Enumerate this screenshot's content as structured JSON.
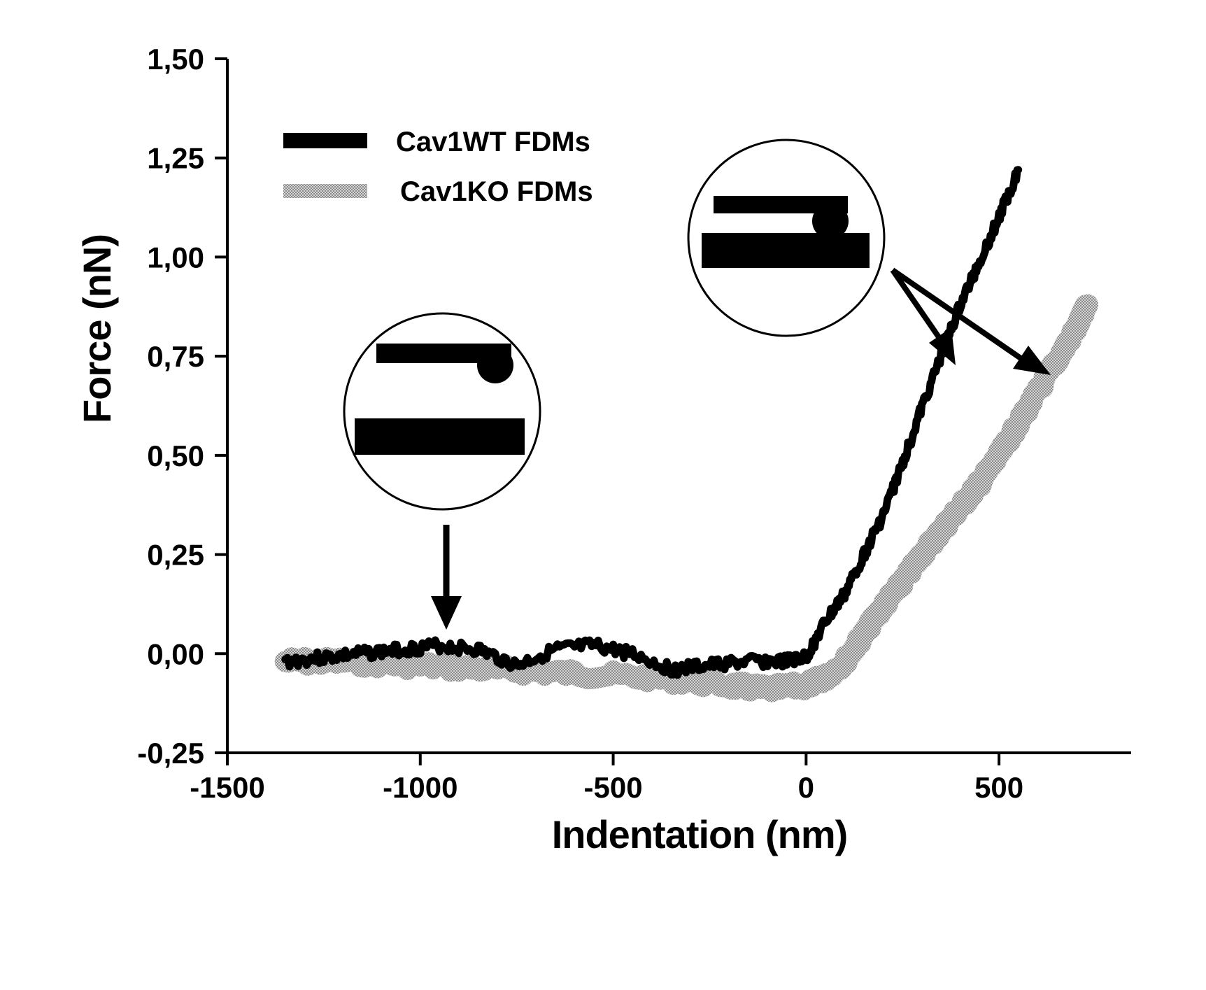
{
  "chart_data": {
    "type": "line",
    "title": "",
    "xlabel": "Indentation (nm)",
    "ylabel": "Force (nN)",
    "xlim": [
      -1500,
      750
    ],
    "ylim": [
      -0.25,
      1.5
    ],
    "xticks": [
      -1500,
      -1000,
      -500,
      0,
      500
    ],
    "xtick_labels": [
      "-1500",
      "-1000",
      "-500",
      "0",
      "500"
    ],
    "yticks": [
      -0.25,
      0,
      0.25,
      0.5,
      0.75,
      1.0,
      1.25,
      1.5
    ],
    "ytick_labels": [
      "-0,25",
      "0,00",
      "0,25",
      "0,50",
      "0,75",
      "1,00",
      "1,25",
      "1,50"
    ],
    "grid": false,
    "legend_position": "top-left",
    "series": [
      {
        "name": "Cav1WT FDMs",
        "color": "#000000",
        "style": "solid-thick",
        "x": [
          -1350,
          -1250,
          -1150,
          -1050,
          -950,
          -850,
          -750,
          -650,
          -550,
          -450,
          -350,
          -250,
          -150,
          -50,
          0,
          50,
          100,
          150,
          200,
          250,
          300,
          350,
          400,
          450,
          500,
          550
        ],
        "y": [
          -0.02,
          -0.01,
          0.0,
          0.01,
          0.02,
          0.01,
          -0.03,
          0.01,
          0.02,
          0.0,
          -0.04,
          -0.03,
          -0.02,
          -0.02,
          -0.01,
          0.08,
          0.15,
          0.25,
          0.35,
          0.48,
          0.62,
          0.75,
          0.88,
          0.99,
          1.1,
          1.22
        ]
      },
      {
        "name": "Cav1KO FDMs",
        "color": "#9a9a9a",
        "style": "solid-thick",
        "x": [
          -1350,
          -1200,
          -1000,
          -800,
          -600,
          -400,
          -200,
          -100,
          0,
          50,
          100,
          150,
          200,
          250,
          300,
          350,
          400,
          450,
          500,
          550,
          600,
          650,
          700,
          730
        ],
        "y": [
          -0.02,
          -0.02,
          -0.03,
          -0.04,
          -0.05,
          -0.06,
          -0.08,
          -0.09,
          -0.08,
          -0.06,
          -0.02,
          0.05,
          0.12,
          0.18,
          0.25,
          0.31,
          0.37,
          0.43,
          0.5,
          0.58,
          0.66,
          0.74,
          0.82,
          0.88
        ]
      }
    ],
    "annotations": [
      {
        "type": "schematic",
        "description": "cantilever above substrate, not in contact",
        "arrow_to": {
          "x": -950,
          "y": 0.06
        }
      },
      {
        "type": "schematic",
        "description": "cantilever tip in contact with substrate",
        "arrows_to": [
          {
            "x": 340,
            "y": 0.73
          },
          {
            "x": 570,
            "y": 0.71
          }
        ]
      }
    ]
  }
}
